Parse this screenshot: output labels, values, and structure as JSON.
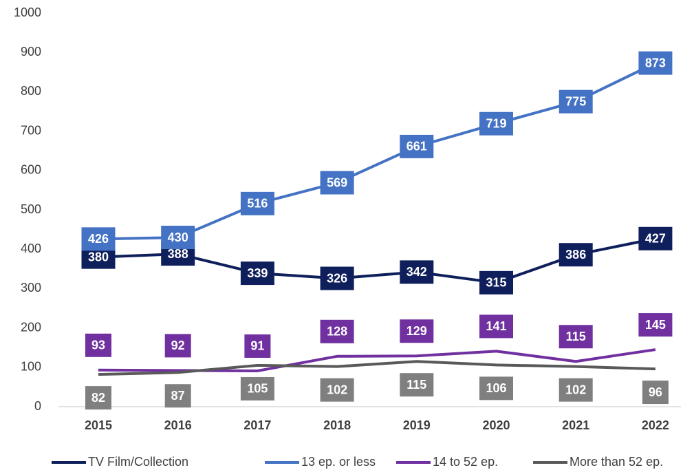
{
  "chart_data": {
    "type": "line",
    "categories": [
      "2015",
      "2016",
      "2017",
      "2018",
      "2019",
      "2020",
      "2021",
      "2022"
    ],
    "series": [
      {
        "name": "TV Film/Collection",
        "color": "#0e1f5b",
        "label_color": "#0e1f5b",
        "values": [
          380,
          388,
          339,
          326,
          342,
          315,
          386,
          427
        ]
      },
      {
        "name": "13 ep. or less",
        "color": "#4472c4",
        "label_color": "#4472c4",
        "values": [
          426,
          430,
          516,
          569,
          661,
          719,
          775,
          873
        ]
      },
      {
        "name": "14 to 52 ep.",
        "color": "#7030a0",
        "label_color": "#7030a0",
        "values": [
          93,
          92,
          91,
          128,
          129,
          141,
          115,
          145
        ]
      },
      {
        "name": "More than 52 ep.",
        "color": "#595959",
        "label_color": "#7f7f7f",
        "values": [
          82,
          87,
          105,
          102,
          115,
          106,
          102,
          96
        ]
      }
    ],
    "ylim": [
      0,
      1000
    ],
    "yticks": [
      0,
      100,
      200,
      300,
      400,
      500,
      600,
      700,
      800,
      900,
      1000
    ],
    "grid": false,
    "legend": "bottom"
  }
}
